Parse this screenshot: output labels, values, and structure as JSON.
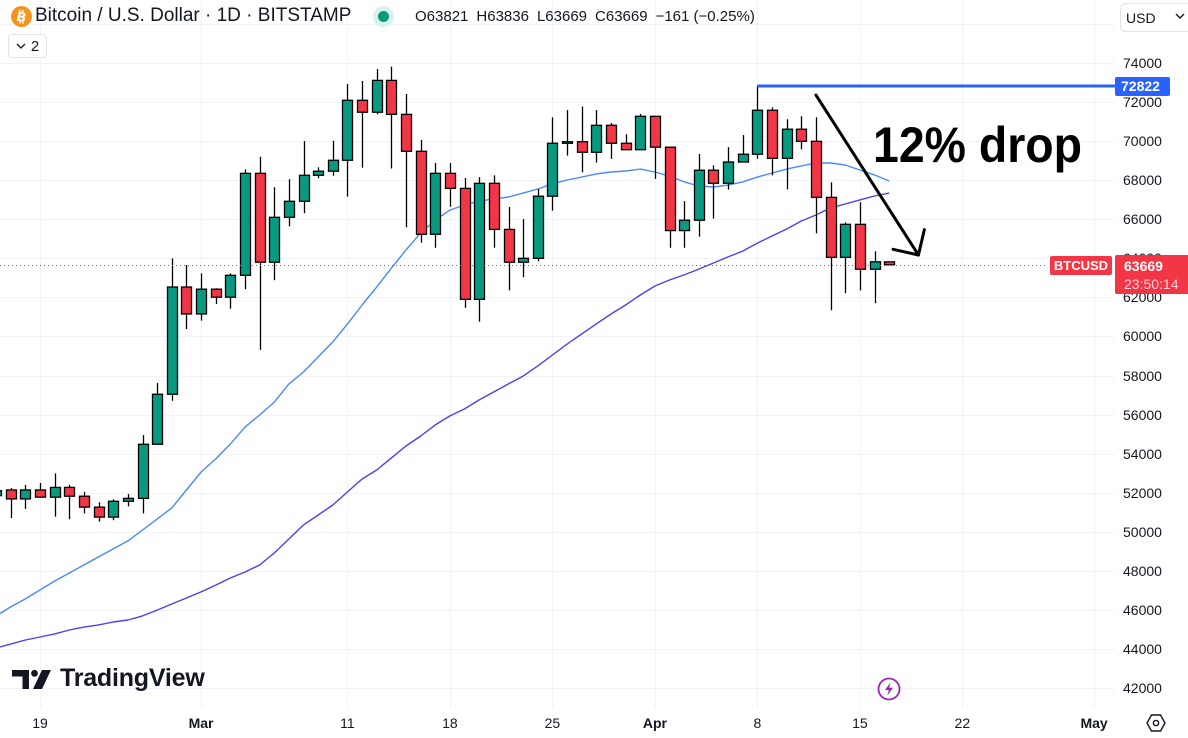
{
  "header": {
    "symbol_icon": "bitcoin-icon",
    "title": "Bitcoin / U.S. Dollar · 1D · BITSTAMP",
    "market_status_icon": "market-open-dot-icon",
    "ohlc": {
      "open_label": "O",
      "open": "63821",
      "high_label": "H",
      "high": "63836",
      "low_label": "L",
      "low": "63669",
      "close_label": "C",
      "close": "63669",
      "change": "−161 (−0.25%)"
    },
    "indicators_toggle": {
      "icon": "chevron-down-icon",
      "count": "2"
    },
    "currency_select": {
      "value": "USD",
      "icon": "chevron-down-icon"
    }
  },
  "price_scale": {
    "labels": [
      "74000",
      "72000",
      "70000",
      "68000",
      "66000",
      "64000",
      "62000",
      "60000",
      "58000",
      "56000",
      "54000",
      "52000",
      "50000",
      "48000",
      "46000",
      "44000",
      "42000"
    ]
  },
  "time_axis": {
    "labels": [
      {
        "text": "19",
        "index": 3,
        "type": "day"
      },
      {
        "text": "Mar",
        "index": 14,
        "type": "month"
      },
      {
        "text": "11",
        "index": 24,
        "type": "day"
      },
      {
        "text": "18",
        "index": 31,
        "type": "day"
      },
      {
        "text": "25",
        "index": 38,
        "type": "day"
      },
      {
        "text": "Apr",
        "index": 45,
        "type": "month"
      },
      {
        "text": "8",
        "index": 52,
        "type": "day"
      },
      {
        "text": "15",
        "index": 59,
        "type": "day"
      },
      {
        "text": "22",
        "index": 66,
        "type": "day"
      },
      {
        "text": "May",
        "index": 75,
        "type": "month"
      }
    ],
    "settings_icon": "settings-icon"
  },
  "price_tags": {
    "symbol": "BTCUSD",
    "last_price": "63669",
    "countdown": "23:50:14",
    "level": "72822"
  },
  "annotation": {
    "text": "12% drop"
  },
  "branding": {
    "logo_text": "TradingView",
    "logo_icon": "tradingview-logo-icon"
  },
  "icons": {
    "alert": "lightning-icon"
  },
  "colors": {
    "up": "#089981",
    "down": "#f23645",
    "candle_border": "#000000",
    "level_line": "#2962ff",
    "ma_fast": "#4b8af5",
    "ma_slow": "#4c3ff0",
    "last_price_line": "#f23645",
    "bitcoin": "#f7931a",
    "alert": "#9c27b0",
    "text": "#131722",
    "grid": "#f0f3fa",
    "annotation": "#000000"
  },
  "chart_data": {
    "type": "candlestick",
    "title": "Bitcoin / U.S. Dollar · 1D · BITSTAMP",
    "xlabel": "",
    "ylabel": "USD",
    "ylim": [
      42000,
      74000
    ],
    "grid": true,
    "x": [
      "Feb 16",
      "Feb 17",
      "Feb 18",
      "Feb 19",
      "Feb 20",
      "Feb 21",
      "Feb 22",
      "Feb 23",
      "Feb 24",
      "Feb 25",
      "Feb 26",
      "Feb 27",
      "Feb 28",
      "Feb 29",
      "Mar 1",
      "Mar 2",
      "Mar 3",
      "Mar 4",
      "Mar 5",
      "Mar 6",
      "Mar 7",
      "Mar 8",
      "Mar 9",
      "Mar 10",
      "Mar 11",
      "Mar 12",
      "Mar 13",
      "Mar 14",
      "Mar 15",
      "Mar 16",
      "Mar 17",
      "Mar 18",
      "Mar 19",
      "Mar 20",
      "Mar 21",
      "Mar 22",
      "Mar 23",
      "Mar 24",
      "Mar 25",
      "Mar 26",
      "Mar 27",
      "Mar 28",
      "Mar 29",
      "Mar 30",
      "Mar 31",
      "Apr 1",
      "Apr 2",
      "Apr 3",
      "Apr 4",
      "Apr 5",
      "Apr 6",
      "Apr 7",
      "Apr 8",
      "Apr 9",
      "Apr 10",
      "Apr 11",
      "Apr 12",
      "Apr 13",
      "Apr 14",
      "Apr 15",
      "Apr 16",
      "Apr 17"
    ],
    "series": [
      {
        "name": "BTCUSD",
        "type": "candlestick",
        "ohlc": [
          [
            51850,
            52500,
            51300,
            52100
          ],
          [
            52140,
            52240,
            50700,
            51680
          ],
          [
            51680,
            52400,
            51170,
            52140
          ],
          [
            52140,
            52500,
            51750,
            51770
          ],
          [
            51770,
            52990,
            50770,
            52270
          ],
          [
            52270,
            52400,
            50640,
            51820
          ],
          [
            51820,
            52040,
            50940,
            51260
          ],
          [
            51260,
            51510,
            50520,
            50750
          ],
          [
            50750,
            51660,
            50590,
            51560
          ],
          [
            51560,
            51930,
            51300,
            51710
          ],
          [
            51710,
            54950,
            50940,
            54480
          ],
          [
            54480,
            57620,
            54450,
            57040
          ],
          [
            57040,
            64000,
            56710,
            62530
          ],
          [
            62530,
            63660,
            60380,
            61150
          ],
          [
            61150,
            63230,
            60810,
            62420
          ],
          [
            62420,
            62470,
            61660,
            62010
          ],
          [
            62010,
            63230,
            61420,
            63130
          ],
          [
            63130,
            68560,
            62420,
            68350
          ],
          [
            68350,
            69200,
            59310,
            63800
          ],
          [
            63800,
            67640,
            62880,
            66100
          ],
          [
            66100,
            68050,
            65640,
            66920
          ],
          [
            66920,
            70000,
            66310,
            68250
          ],
          [
            68250,
            68660,
            68100,
            68460
          ],
          [
            68460,
            70020,
            68230,
            69020
          ],
          [
            69020,
            72925,
            67160,
            72090
          ],
          [
            72090,
            73080,
            68640,
            71480
          ],
          [
            71480,
            73690,
            71370,
            73110
          ],
          [
            73110,
            73810,
            68600,
            71370
          ],
          [
            71370,
            72410,
            65590,
            69480
          ],
          [
            69480,
            70060,
            64800,
            65230
          ],
          [
            65230,
            68880,
            64540,
            68350
          ],
          [
            68350,
            68880,
            66640,
            67580
          ],
          [
            67580,
            68110,
            61470,
            61900
          ],
          [
            61900,
            68160,
            60760,
            67840
          ],
          [
            67840,
            68250,
            64540,
            65480
          ],
          [
            65480,
            66630,
            62360,
            63800
          ],
          [
            63800,
            66010,
            63030,
            64000
          ],
          [
            64000,
            67550,
            63850,
            67180
          ],
          [
            67180,
            71220,
            66440,
            69890
          ],
          [
            69890,
            71590,
            69260,
            69970
          ],
          [
            69970,
            71770,
            68400,
            69430
          ],
          [
            69430,
            71590,
            68900,
            70810
          ],
          [
            70810,
            70930,
            69090,
            69890
          ],
          [
            69890,
            70350,
            69560,
            69560
          ],
          [
            69560,
            71390,
            69560,
            71270
          ],
          [
            71270,
            71270,
            68060,
            69690
          ],
          [
            69690,
            69690,
            64540,
            65420
          ],
          [
            65420,
            66930,
            64540,
            65950
          ],
          [
            65950,
            69340,
            65110,
            68510
          ],
          [
            68510,
            68760,
            66030,
            67840
          ],
          [
            67840,
            69690,
            67520,
            68930
          ],
          [
            68930,
            70310,
            68930,
            69330
          ],
          [
            69330,
            72822,
            69100,
            71580
          ],
          [
            71580,
            71730,
            68250,
            69120
          ],
          [
            69120,
            71120,
            67530,
            70610
          ],
          [
            70610,
            71270,
            69580,
            69990
          ],
          [
            69990,
            71220,
            65280,
            67120
          ],
          [
            67120,
            67890,
            61340,
            64050
          ],
          [
            64050,
            65840,
            62210,
            65740
          ],
          [
            65740,
            66870,
            62360,
            63440
          ],
          [
            63440,
            64360,
            61700,
            63821
          ],
          [
            63821,
            63836,
            63669,
            63669
          ]
        ]
      },
      {
        "name": "Moving average (fast)",
        "type": "line",
        "color": "#4b8af5",
        "values": [
          45690,
          46150,
          46560,
          47020,
          47480,
          47890,
          48300,
          48710,
          49120,
          49530,
          50090,
          50650,
          51220,
          52140,
          53060,
          53730,
          54490,
          55360,
          55980,
          56640,
          57570,
          58180,
          58950,
          59720,
          60640,
          61610,
          62530,
          63500,
          64430,
          65300,
          65960,
          66470,
          66730,
          66930,
          67040,
          67140,
          67340,
          67550,
          67810,
          68010,
          68160,
          68320,
          68420,
          68470,
          68570,
          68420,
          68210,
          67910,
          67700,
          67650,
          67750,
          67910,
          68160,
          68370,
          68570,
          68730,
          68880,
          68880,
          68780,
          68520,
          68270,
          67960
        ]
      },
      {
        "name": "Moving average (slow)",
        "type": "line",
        "color": "#4c3ff0",
        "values": [
          44050,
          44250,
          44460,
          44610,
          44770,
          44970,
          45120,
          45230,
          45380,
          45480,
          45690,
          45990,
          46300,
          46610,
          46920,
          47270,
          47630,
          47940,
          48300,
          48910,
          49630,
          50350,
          50860,
          51370,
          52040,
          52700,
          53160,
          53780,
          54390,
          54900,
          55470,
          55930,
          56290,
          56750,
          57160,
          57570,
          57970,
          58490,
          59050,
          59610,
          60130,
          60640,
          61150,
          61610,
          62120,
          62580,
          62890,
          63150,
          63450,
          63760,
          64070,
          64370,
          64780,
          65140,
          65500,
          65910,
          66220,
          66580,
          66780,
          66990,
          67190,
          67340
        ]
      }
    ],
    "y_ticks": [
      74000,
      72000,
      70000,
      68000,
      66000,
      64000,
      62000,
      60000,
      58000,
      56000,
      54000,
      52000,
      50000,
      48000,
      46000,
      44000,
      42000
    ],
    "x_tick_labels": [
      "19",
      "Mar",
      "11",
      "18",
      "25",
      "Apr",
      "8",
      "15",
      "22",
      "May"
    ],
    "last_price": 63669,
    "annotations": [
      {
        "type": "horizontal_line",
        "price": 72822,
        "from_index": 52,
        "label": "72822"
      },
      {
        "type": "arrow",
        "from": {
          "index": 56.0,
          "price": 72360
        },
        "to": {
          "index": 63.0,
          "price": 64170
        }
      },
      {
        "type": "text",
        "text": "12% drop",
        "index": 59.9,
        "price": 68930
      }
    ],
    "legend": []
  }
}
